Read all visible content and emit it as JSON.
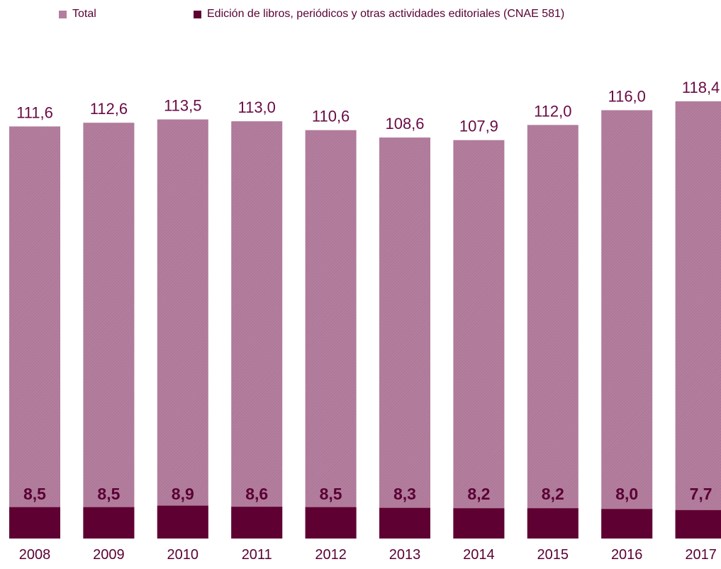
{
  "chart_data": {
    "type": "bar",
    "categories": [
      "2008",
      "2009",
      "2010",
      "2011",
      "2012",
      "2013",
      "2014",
      "2015",
      "2016",
      "2017"
    ],
    "series": [
      {
        "name": "Total",
        "values": [
          111.6,
          112.6,
          113.5,
          113.0,
          110.6,
          108.6,
          107.9,
          112.0,
          116.0,
          118.4
        ]
      },
      {
        "name": "Edición de libros, periódicos y otras actividades editoriales (CNAE 581)",
        "values": [
          8.5,
          8.5,
          8.9,
          8.6,
          8.5,
          8.3,
          8.2,
          8.2,
          8.0,
          7.7
        ]
      }
    ],
    "value_labels": {
      "total": [
        "111,6",
        "112,6",
        "113,5",
        "113,0",
        "110,6",
        "108,6",
        "107,9",
        "112,0",
        "116,0",
        "118,4"
      ],
      "sub": [
        "8,5",
        "8,5",
        "8,9",
        "8,6",
        "8,5",
        "8,3",
        "8,2",
        "8,2",
        "8,0",
        "7,7"
      ]
    },
    "legend_position": "top",
    "grid": false,
    "overlap": true,
    "colors": {
      "total": "#b47e9e",
      "total_hatch": "#a56f90",
      "sub": "#5f0032",
      "text": "#5a0034",
      "total_label": "#6a0a45"
    }
  }
}
